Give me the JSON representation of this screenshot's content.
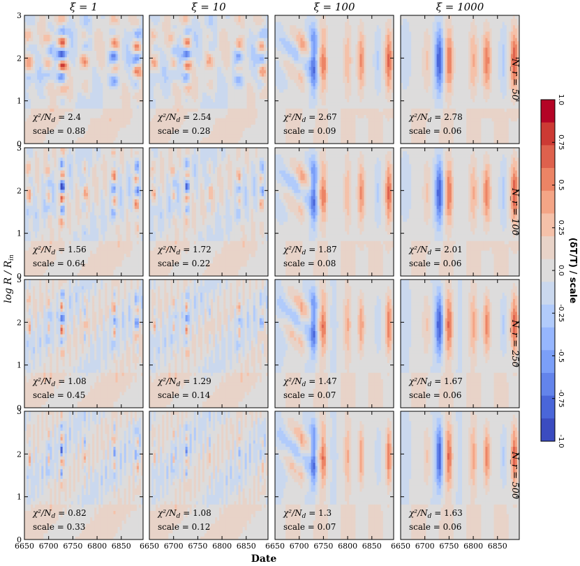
{
  "chart_data": {
    "type": "heatmap",
    "title": "",
    "xlabel": "Date",
    "ylabel": "log R / R_in",
    "column_titles": [
      "ξ = 1",
      "ξ = 10",
      "ξ = 100",
      "ξ = 1000"
    ],
    "row_titles": [
      "N_r = 50",
      "N_r = 100",
      "N_r = 250",
      "N_r = 500"
    ],
    "x_range": [
      6650,
      6895
    ],
    "x_ticks": [
      6650,
      6700,
      6750,
      6800,
      6850
    ],
    "y_range": [
      0,
      3
    ],
    "y_ticks": [
      0,
      1,
      2,
      3
    ],
    "colorbar": {
      "label": "(δT/T) / scale",
      "range": [
        -1.0,
        1.0
      ],
      "ticks": [
        "1.0",
        "0.75",
        "0.5",
        "0.25",
        "0.0",
        "-0.25",
        "-0.5",
        "-0.75",
        "-1.0"
      ],
      "colors": [
        "#b40426",
        "#cc3a34",
        "#de614d",
        "#ec8465",
        "#f4a586",
        "#f5c1a9",
        "#e8d3c8",
        "#dddcdc",
        "#cad8ee",
        "#b1cbfb",
        "#96b6fe",
        "#7b9ff8",
        "#6384eb",
        "#4a66d9",
        "#3b4cc0"
      ]
    },
    "panels": [
      {
        "row": 0,
        "col": 0,
        "chi2": "2.4",
        "scale": "0.88"
      },
      {
        "row": 0,
        "col": 1,
        "chi2": "2.54",
        "scale": "0.28"
      },
      {
        "row": 0,
        "col": 2,
        "chi2": "2.67",
        "scale": "0.09"
      },
      {
        "row": 0,
        "col": 3,
        "chi2": "2.78",
        "scale": "0.06"
      },
      {
        "row": 1,
        "col": 0,
        "chi2": "1.56",
        "scale": "0.64"
      },
      {
        "row": 1,
        "col": 1,
        "chi2": "1.72",
        "scale": "0.22"
      },
      {
        "row": 1,
        "col": 2,
        "chi2": "1.87",
        "scale": "0.08"
      },
      {
        "row": 1,
        "col": 3,
        "chi2": "2.01",
        "scale": "0.06"
      },
      {
        "row": 2,
        "col": 0,
        "chi2": "1.08",
        "scale": "0.45"
      },
      {
        "row": 2,
        "col": 1,
        "chi2": "1.29",
        "scale": "0.14"
      },
      {
        "row": 2,
        "col": 2,
        "chi2": "1.47",
        "scale": "0.07"
      },
      {
        "row": 2,
        "col": 3,
        "chi2": "1.67",
        "scale": "0.06"
      },
      {
        "row": 3,
        "col": 0,
        "chi2": "0.82",
        "scale": "0.33"
      },
      {
        "row": 3,
        "col": 1,
        "chi2": "1.08",
        "scale": "0.12"
      },
      {
        "row": 3,
        "col": 2,
        "chi2": "1.3",
        "scale": "0.07"
      },
      {
        "row": 3,
        "col": 3,
        "chi2": "1.63",
        "scale": "0.06"
      }
    ],
    "features": {
      "xi_low": [
        {
          "date": 6728,
          "amp": 0.9,
          "period": 0.28
        },
        {
          "date": 6700,
          "amp": 0.35,
          "period": 0.3
        },
        {
          "date": 6775,
          "amp": 0.3,
          "period": 0.32
        },
        {
          "date": 6835,
          "amp": 0.55,
          "period": 0.3
        },
        {
          "date": 6882,
          "amp": 0.6,
          "period": 0.3
        },
        {
          "date": 6660,
          "amp": 0.35,
          "period": 0.35
        }
      ],
      "xi_high": [
        {
          "date": 6730,
          "sign": -1,
          "amp": 0.85
        },
        {
          "date": 6750,
          "sign": 1,
          "amp": 0.6
        },
        {
          "date": 6705,
          "sign": 1,
          "amp": 0.25
        },
        {
          "date": 6800,
          "sign": 1,
          "amp": 0.35
        },
        {
          "date": 6828,
          "sign": 1,
          "amp": 0.6
        },
        {
          "date": 6885,
          "sign": 1,
          "amp": 0.75
        },
        {
          "date": 6862,
          "sign": -1,
          "amp": 0.25
        }
      ]
    }
  },
  "labels": {
    "chi_prefix": "χ²/N",
    "chi_sub": "d",
    "equals": " = ",
    "scale_prefix": "scale = "
  }
}
